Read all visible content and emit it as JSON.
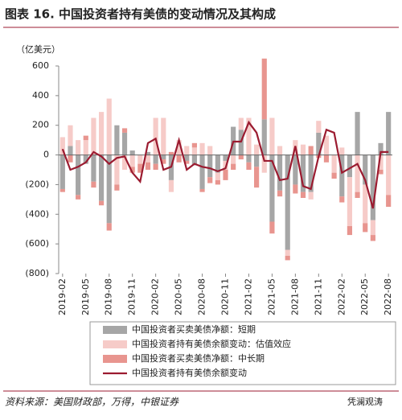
{
  "chart_data": {
    "type": "bar",
    "title": "图表 16. 中国投资者持有美债的变动情况及其构成",
    "y_label": "（亿美元）",
    "source": "资料来源：美国财政部，万得，中银证券",
    "watermark": "凭澜观涛",
    "categories": [
      "2019-02",
      null,
      null,
      "2019-05",
      null,
      null,
      "2019-08",
      null,
      null,
      "2019-11",
      null,
      null,
      "2020-02",
      null,
      null,
      "2020-05",
      null,
      null,
      "2020-08",
      null,
      null,
      "2020-11",
      null,
      null,
      "2021-02",
      null,
      null,
      "2021-05",
      null,
      null,
      "2021-08",
      null,
      null,
      "2021-11",
      null,
      null,
      "2022-02",
      null,
      null,
      "2022-05",
      null,
      null,
      "2022-08"
    ],
    "series": [
      {
        "name": "中国投资者买卖美债净额：短期",
        "color": "#a6a6a6",
        "kind": "bar",
        "values": [
          -230,
          60,
          -270,
          -60,
          -180,
          -310,
          -460,
          200,
          150,
          30,
          0,
          20,
          -60,
          -30,
          -170,
          0,
          -40,
          -70,
          -230,
          -150,
          -120,
          -40,
          190,
          170,
          -50,
          -80,
          240,
          -450,
          -240,
          -640,
          -200,
          -250,
          -250,
          150,
          0,
          0,
          -280,
          -150,
          290,
          -200,
          -440,
          80,
          290
        ]
      },
      {
        "name": "中国投资者持有美债余额变动：估值效应",
        "color": "#f6cbc8",
        "kind": "bar",
        "values": [
          120,
          140,
          100,
          100,
          250,
          290,
          380,
          -200,
          -100,
          -80,
          -60,
          -50,
          250,
          250,
          -80,
          100,
          60,
          50,
          80,
          60,
          -50,
          -60,
          -60,
          80,
          250,
          70,
          -120,
          250,
          60,
          -40,
          100,
          70,
          -50,
          80,
          130,
          -120,
          50,
          -330,
          -250,
          -260,
          -100,
          -100,
          -270
        ]
      },
      {
        "name": "中国投资者买卖美债净额：中长期",
        "color": "#e8958f",
        "kind": "bar",
        "values": [
          -20,
          -50,
          -30,
          30,
          -40,
          -30,
          -50,
          -40,
          30,
          -40,
          -60,
          -50,
          -40,
          -30,
          20,
          -50,
          -20,
          30,
          -20,
          -40,
          -30,
          -70,
          -40,
          -30,
          -50,
          -140,
          410,
          -80,
          -40,
          -30,
          -60,
          -40,
          60,
          -20,
          -50,
          -40,
          -40,
          -60,
          -40,
          -60,
          -40,
          -30,
          -80
        ]
      },
      {
        "name": "中国投资者持有美债余额变动",
        "color": "#9b1b30",
        "kind": "line",
        "values": [
          40,
          -100,
          -80,
          -50,
          20,
          -10,
          -60,
          -20,
          -10,
          -120,
          -180,
          80,
          110,
          -100,
          -80,
          100,
          -100,
          -60,
          -80,
          -90,
          -110,
          -90,
          90,
          90,
          220,
          150,
          -40,
          -40,
          -170,
          -160,
          60,
          -210,
          -230,
          -10,
          170,
          150,
          -120,
          -90,
          -60,
          -170,
          -360,
          20,
          20
        ]
      }
    ],
    "ylim": [
      -800,
      600
    ],
    "yticks": [
      600,
      400,
      200,
      0,
      {
        "value": -200,
        "label": "(200)"
      },
      {
        "value": -400,
        "label": "(400)"
      },
      {
        "value": -600,
        "label": "(600)"
      },
      {
        "value": -800,
        "label": "(800)"
      }
    ]
  }
}
